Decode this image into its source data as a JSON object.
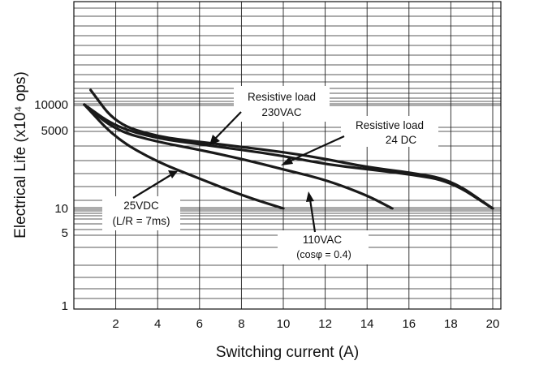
{
  "chart_data": {
    "type": "line",
    "xlabel": "Switching current (A)",
    "ylabel": "Electrical Life (x10⁴ ops)",
    "y_scale": "log",
    "grid": true,
    "xlim": [
      0,
      22
    ],
    "x_ticks": [
      "2",
      "4",
      "6",
      "8",
      "10",
      "12",
      "14",
      "16",
      "18",
      "20"
    ],
    "y_ticks": [
      "1",
      "5",
      "10",
      "5000",
      "10000"
    ],
    "series": [
      {
        "x": [
          0.5,
          2,
          4,
          6,
          8,
          10,
          12,
          14,
          16,
          18,
          20
        ],
        "y": [
          10000,
          5500,
          3500,
          2700,
          2100,
          1600,
          1100,
          720,
          410,
          180,
          10
        ]
      },
      {
        "x": [
          0.8,
          2,
          4,
          6,
          8,
          10,
          12,
          14,
          16,
          18,
          20
        ],
        "y": [
          12000,
          6000,
          3800,
          3000,
          2400,
          1900,
          1400,
          900,
          500,
          220,
          10
        ]
      },
      {
        "x": [
          0.5,
          2,
          4,
          6,
          8,
          10,
          12,
          14,
          15.2
        ],
        "y": [
          10000,
          5000,
          3000,
          2100,
          1400,
          700,
          220,
          40,
          10
        ]
      },
      {
        "x": [
          0.5,
          2,
          4,
          6,
          8,
          10
        ],
        "y": [
          10000,
          3500,
          1200,
          250,
          40,
          10
        ]
      }
    ],
    "annotations": [
      {
        "lines": [
          "Resistive load",
          "230VAC"
        ]
      },
      {
        "lines": [
          "Resistive load",
          "24 DC"
        ]
      },
      {
        "lines": [
          "25VDC",
          "(L/R = 7ms)"
        ]
      },
      {
        "lines": [
          "110VAC",
          "(cosφ = 0.4)"
        ]
      }
    ]
  }
}
